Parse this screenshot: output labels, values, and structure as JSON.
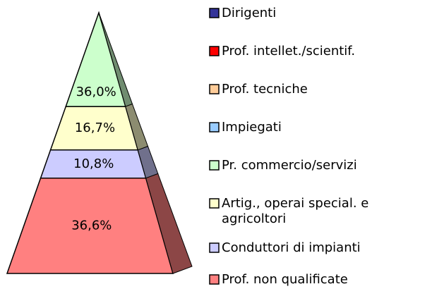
{
  "chart_data": {
    "type": "pyramid",
    "categories": [
      "Dirigenti",
      "Prof. intellet./scientif.",
      "Prof. tecniche",
      "Impiegati",
      "Pr. commercio/servizi",
      "Artig., operai special. e agricoltori",
      "Conduttori di impianti",
      "Prof. non qualificate"
    ],
    "values": [
      0,
      0,
      0,
      0,
      36.0,
      16.7,
      10.8,
      36.6
    ],
    "value_labels": [
      null,
      null,
      null,
      null,
      "36,0%",
      "16,7%",
      "10,8%",
      "36,6%"
    ],
    "colors": [
      "#333399",
      "#ff0000",
      "#ffcc99",
      "#99ccff",
      "#ccffcc",
      "#ffffcc",
      "#ccccff",
      "#ff8080"
    ]
  }
}
